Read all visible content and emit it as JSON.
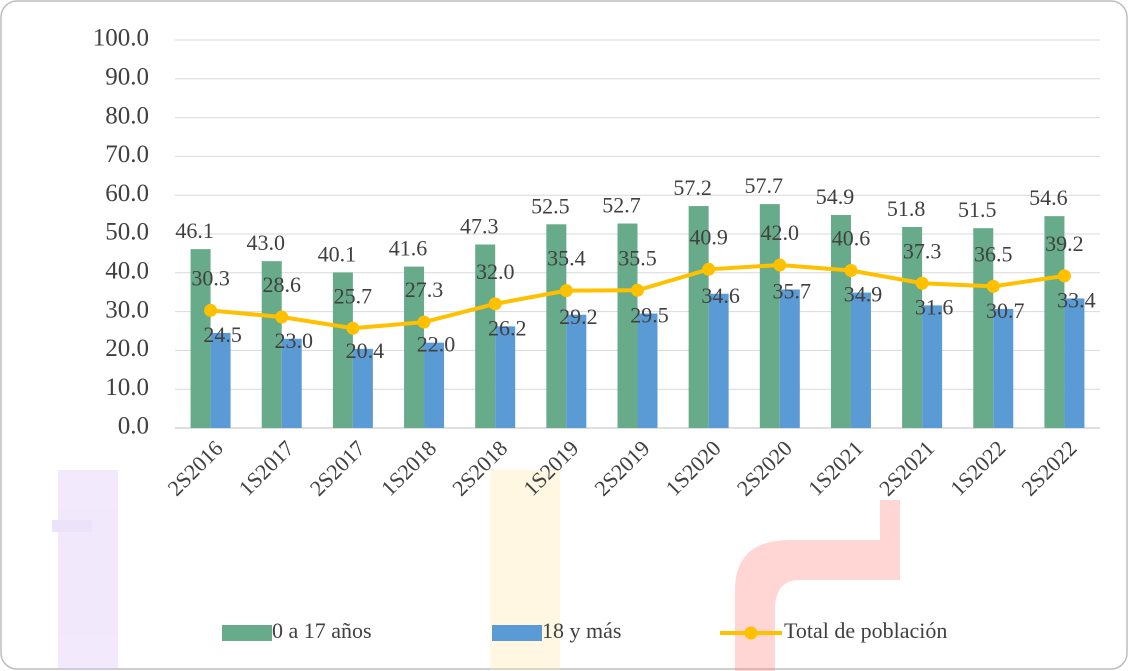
{
  "chart_data": {
    "type": "bar",
    "categories": [
      "2S2016",
      "1S2017",
      "2S2017",
      "1S2018",
      "2S2018",
      "1S2019",
      "2S2019",
      "1S2020",
      "2S2020",
      "1S2021",
      "2S2021",
      "1S2022",
      "2S2022"
    ],
    "series": [
      {
        "name": "0 a 17 años",
        "type": "bar",
        "color": "#67ab8a",
        "values": [
          46.1,
          43.0,
          40.1,
          41.6,
          47.3,
          52.5,
          52.7,
          57.2,
          57.7,
          54.9,
          51.8,
          51.5,
          54.6
        ],
        "value_labels": [
          "46.1",
          "43.0",
          "40.1",
          "41.6",
          "47.3",
          "52.5",
          "52.7",
          "57.2",
          "57.7",
          "54.9",
          "51.8",
          "51.5",
          "54.6"
        ]
      },
      {
        "name": "18 y más",
        "type": "bar",
        "color": "#5b9bd5",
        "values": [
          24.5,
          23.0,
          20.4,
          22.0,
          26.2,
          29.2,
          29.5,
          34.6,
          35.7,
          34.9,
          31.6,
          30.7,
          33.4
        ],
        "value_labels": [
          "24.5",
          "23.0",
          "20.4",
          "22.0",
          "26.2",
          "29.2",
          "29.5",
          "34.6",
          "35.7",
          "34.9",
          "31.6",
          "30.7",
          "33.4"
        ]
      },
      {
        "name": "Total de población",
        "type": "line",
        "color": "#ffc000",
        "values": [
          30.3,
          28.6,
          25.7,
          27.3,
          32.0,
          35.4,
          35.5,
          40.9,
          42.0,
          40.6,
          37.3,
          36.5,
          39.2
        ],
        "value_labels": [
          "30.3",
          "28.6",
          "25.7",
          "27.3",
          "32.0",
          "35.4",
          "35.5",
          "40.9",
          "42.0",
          "40.6",
          "37.3",
          "36.5",
          "39.2"
        ]
      }
    ],
    "ylim": [
      0,
      100
    ],
    "yticks": [
      {
        "value": 0,
        "label": "0.0"
      },
      {
        "value": 10,
        "label": "10.0"
      },
      {
        "value": 20,
        "label": "20.0"
      },
      {
        "value": 30,
        "label": "30.0"
      },
      {
        "value": 40,
        "label": "40.0"
      },
      {
        "value": 50,
        "label": "50.0"
      },
      {
        "value": 60,
        "label": "60.0"
      },
      {
        "value": 70,
        "label": "70.0"
      },
      {
        "value": 80,
        "label": "80.0"
      },
      {
        "value": 90,
        "label": "90.0"
      },
      {
        "value": 100,
        "label": "100.0"
      }
    ],
    "grid": true,
    "legend": "bottom"
  }
}
